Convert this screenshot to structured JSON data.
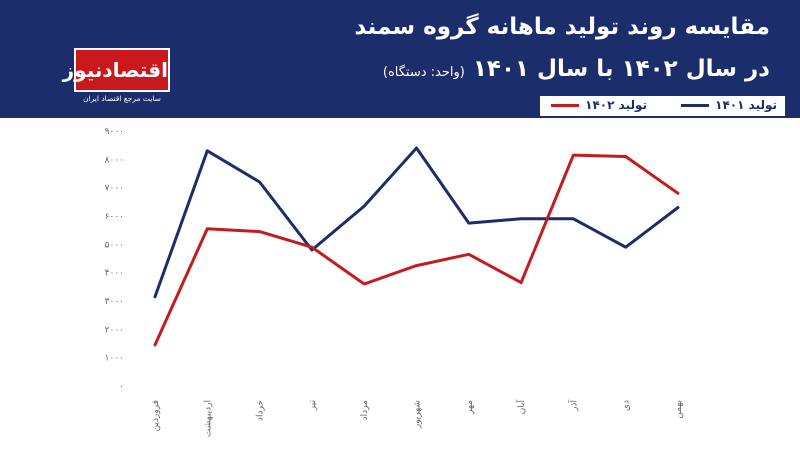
{
  "header": {
    "title_line1": "مقایسه روند تولید ماهانه گروه سمند",
    "title_line2": "در سال ۱۴۰۲ با سال ۱۴۰۱",
    "unit_note": "(واحد: دستگاه)"
  },
  "logo": {
    "name": "اقتصادنیوز",
    "tagline": "سایت مرجع اقتصاد ایران"
  },
  "chart_data": {
    "type": "line",
    "title": "",
    "xlabel": "",
    "ylabel": "",
    "categories": [
      "فروردین",
      "اردیبهشت",
      "خرداد",
      "تیر",
      "مرداد",
      "شهریور",
      "مهر",
      "آبان",
      "آذر",
      "دی",
      "بهمن"
    ],
    "series": [
      {
        "name": "تولید ۱۴۰۱",
        "color": "#1b2d6b",
        "values": [
          3150,
          8300,
          7200,
          4800,
          6350,
          8400,
          5750,
          5900,
          5900,
          4900,
          6300
        ]
      },
      {
        "name": "تولید ۱۴۰۲",
        "color": "#c41b1f",
        "values": [
          1450,
          5550,
          5450,
          4900,
          3600,
          4250,
          4650,
          3650,
          8150,
          8100,
          6800
        ]
      }
    ],
    "ylim": [
      0,
      9000
    ],
    "yticks": [
      "۰",
      "۱۰۰۰",
      "۲۰۰۰",
      "۳۰۰۰",
      "۴۰۰۰",
      "۵۰۰۰",
      "۶۰۰۰",
      "۷۰۰۰",
      "۸۰۰۰",
      "۹۰۰۰"
    ],
    "grid": false,
    "legend_position": "top-right"
  }
}
